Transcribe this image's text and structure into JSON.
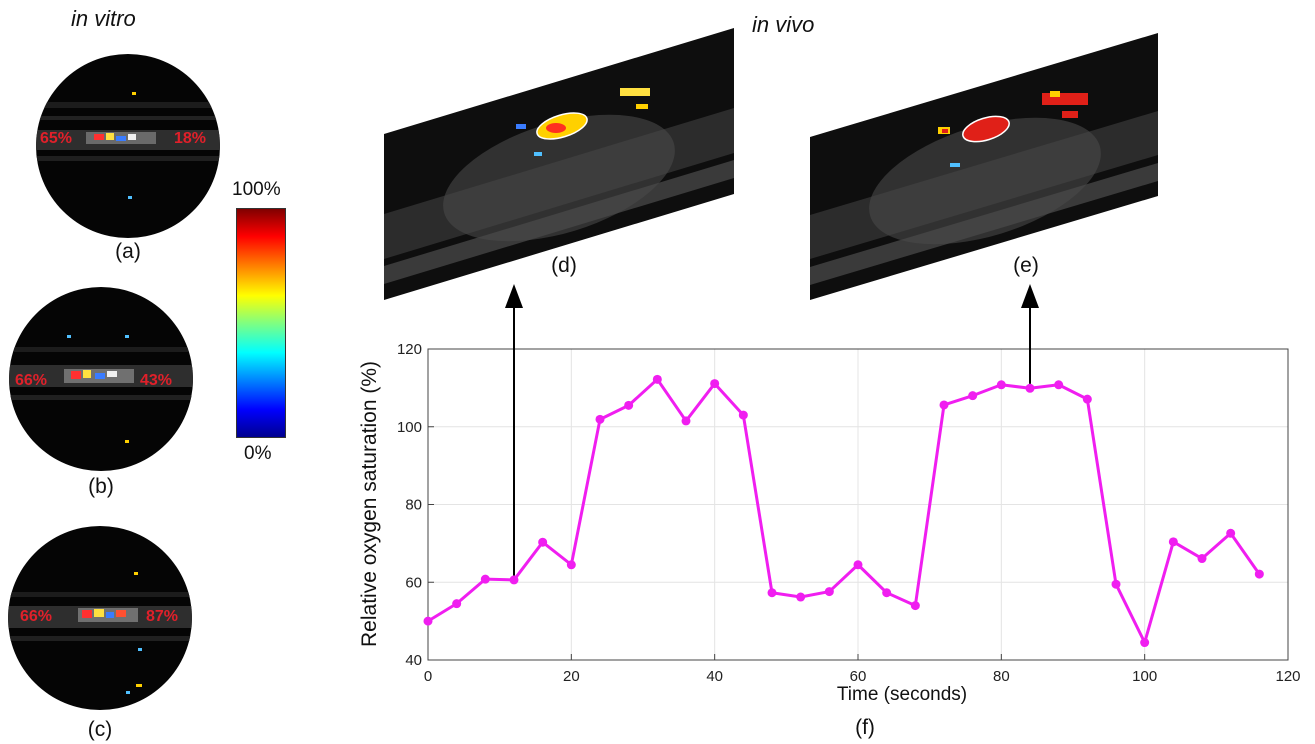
{
  "headings": {
    "in_vitro": "in vitro",
    "in_vivo": "in vivo"
  },
  "panels": {
    "a": {
      "label": "(a)",
      "left_pct": "65%",
      "right_pct": "18%"
    },
    "b": {
      "label": "(b)",
      "left_pct": "66%",
      "right_pct": "43%"
    },
    "c": {
      "label": "(c)",
      "left_pct": "66%",
      "right_pct": "87%"
    },
    "d": {
      "label": "(d)"
    },
    "e": {
      "label": "(e)"
    },
    "f": {
      "label": "(f)"
    }
  },
  "colorbar": {
    "max_label": "100%",
    "min_label": "0%",
    "colormap": "jet"
  },
  "colors": {
    "series": "#f01ef0",
    "percent_text": "#e0202a",
    "arrow": "#000000"
  },
  "chart_data": {
    "type": "line",
    "xlabel": "Time (seconds)",
    "ylabel": "Relative oxygen saturation (%)",
    "xlim": [
      0,
      120
    ],
    "ylim": [
      40,
      120
    ],
    "xticks": [
      0,
      20,
      40,
      60,
      80,
      100,
      120
    ],
    "yticks": [
      40,
      60,
      80,
      100,
      120
    ],
    "grid": true,
    "series": [
      {
        "x": [
          0,
          4,
          8,
          12,
          16,
          20,
          24,
          28,
          32,
          36,
          40,
          44,
          48,
          52,
          56,
          60,
          64,
          68,
          72,
          76,
          80,
          84,
          88,
          92,
          96,
          100,
          104,
          108,
          112,
          116
        ],
        "values": [
          50,
          54.5,
          60.8,
          60.6,
          70.3,
          64.5,
          101.9,
          105.5,
          112.2,
          101.5,
          111.1,
          103.0,
          57.3,
          56.2,
          57.6,
          64.5,
          57.3,
          54.0,
          105.6,
          108.0,
          110.8,
          109.9,
          110.8,
          107.1,
          59.5,
          44.5,
          70.4,
          66.1,
          72.6,
          62.1
        ]
      }
    ],
    "arrows_at_x": [
      12,
      84
    ]
  }
}
